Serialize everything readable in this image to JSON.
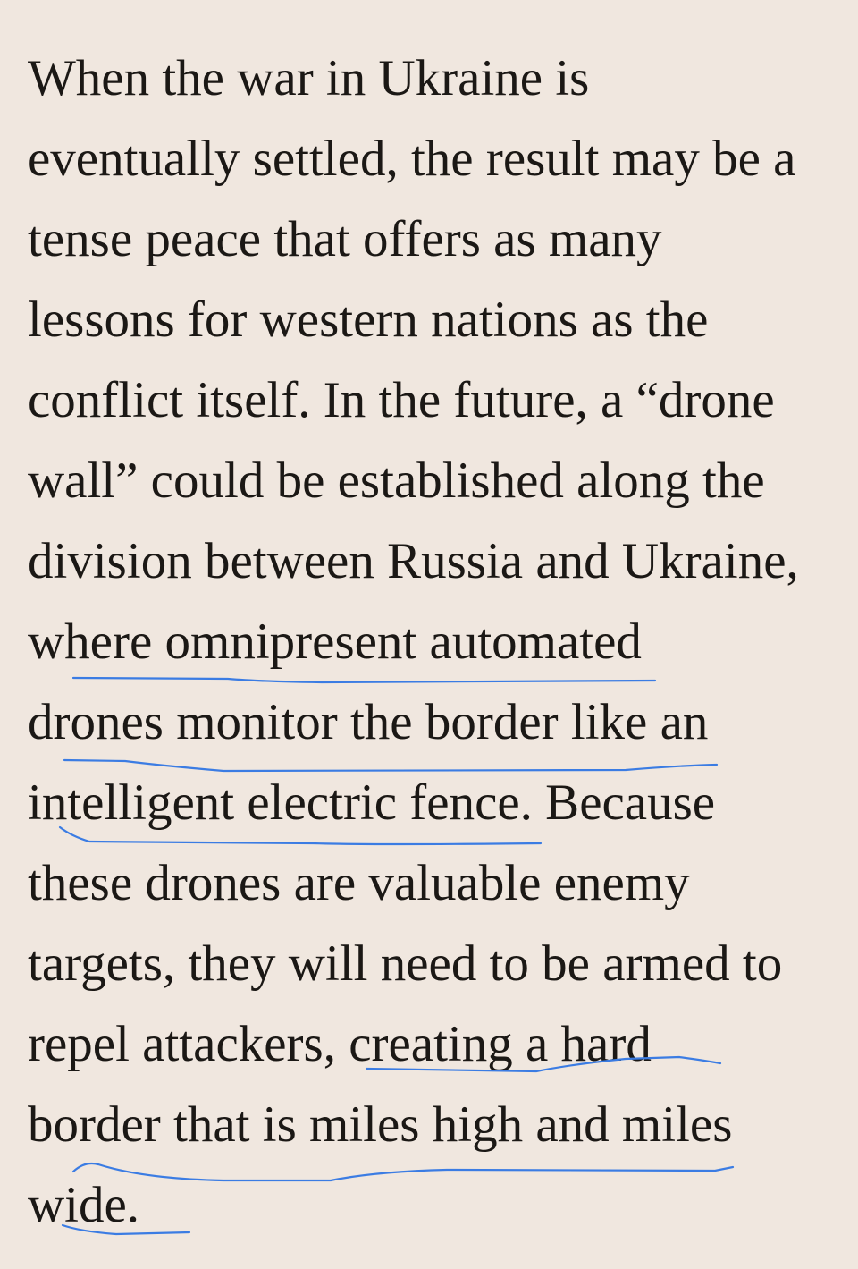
{
  "article": {
    "lines": [
      "When the war in Ukraine is",
      "eventually settled, the result may be a",
      "tense peace that offers as many",
      "lessons for western nations as the",
      "conflict itself. In the future, a “drone",
      "wall” could be established along the",
      "division between Russia and Ukraine,",
      "where omnipresent automated",
      "drones monitor the border like an",
      "intelligent electric fence. Because",
      "these drones are valuable enemy",
      "targets, they will need to be armed to",
      "repel attackers, creating a hard",
      "border that is miles high and miles",
      "wide."
    ]
  },
  "annotations": {
    "color": "#3b7ce3",
    "underlined_phrases": [
      "omnipresent automated",
      "drones monitor the border like an",
      "intelligent electric fence.",
      "creating a hard",
      "border that is miles high and miles",
      "wide."
    ]
  }
}
